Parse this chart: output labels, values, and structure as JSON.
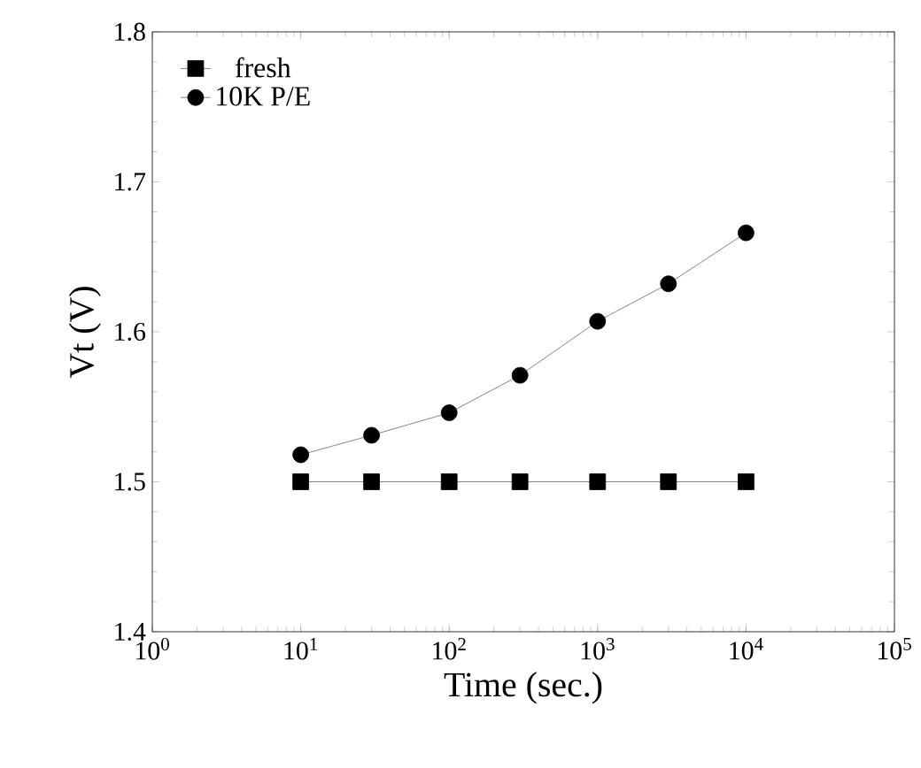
{
  "chart_data": {
    "type": "line",
    "xlabel": "Time (sec.)",
    "ylabel": "Vt (V)",
    "log": "x",
    "x": [
      10,
      30,
      100,
      300,
      1000,
      3000,
      10000
    ],
    "series": [
      {
        "name": "fresh",
        "color": "#000000",
        "marker": "square",
        "values": [
          1.5,
          1.5,
          1.5,
          1.5,
          1.5,
          1.5,
          1.5
        ]
      },
      {
        "name": "10K P/E",
        "color": "#000000",
        "marker": "circle",
        "values": [
          1.518,
          1.531,
          1.546,
          1.571,
          1.607,
          1.632,
          1.666
        ]
      }
    ],
    "xlim": [
      1,
      100000
    ],
    "xticks": [
      {
        "value": 1,
        "label": "10$^{0}$"
      },
      {
        "value": 10,
        "label": "10$^{1}$"
      },
      {
        "value": 100,
        "label": "10$^{2}$"
      },
      {
        "value": 1000,
        "label": "10$^{3}$"
      },
      {
        "value": 10000,
        "label": "10$^{4}$"
      },
      {
        "value": 100000,
        "label": "10$^{5}$"
      }
    ],
    "ylim": [
      1.4,
      1.8
    ],
    "yticks": [
      1.4,
      1.5,
      1.6,
      1.7,
      1.8
    ],
    "legend": "top left",
    "grid": false
  }
}
